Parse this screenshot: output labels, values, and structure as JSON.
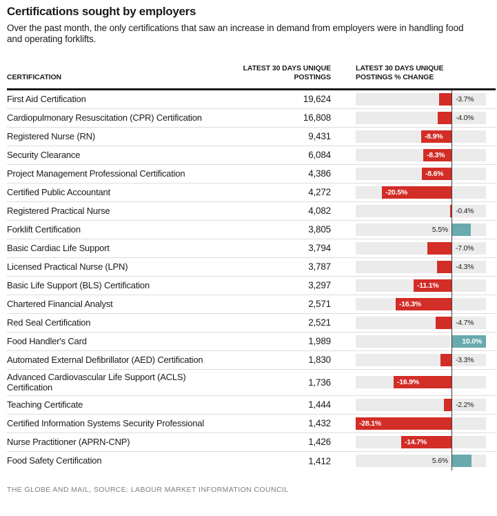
{
  "header": {
    "title": "Certifications sought by employers",
    "subtitle": "Over the past month, the only certifications that saw an increase in demand from employers were in handling food and operating forklifts."
  },
  "columns": {
    "certification": "CERTIFICATION",
    "postings_line1": "LATEST 30 DAYS UNIQUE",
    "postings_line2": "POSTINGS",
    "change_line1": "LATEST 30 DAYS UNIQUE",
    "change_line2": "POSTINGS % CHANGE"
  },
  "colors": {
    "negative": "#d22d26",
    "positive": "#68aaaf",
    "track": "#ebebeb",
    "rule": "#1a1a1a",
    "zeroline": "#3c3c3c"
  },
  "footer": {
    "credit": "THE GLOBE AND MAIL, SOURCE: LABOUR MARKET INFORMATION COUNCIL"
  },
  "chart_data": {
    "type": "bar",
    "orientation": "horizontal",
    "value_axis": "percent change",
    "xlim": [
      -28.1,
      10.0
    ],
    "grid": false,
    "rows": [
      {
        "name": "First Aid Certification",
        "postings": "19,624",
        "change": -3.7,
        "change_label": "-3.7%"
      },
      {
        "name": "Cardiopulmonary Resuscitation (CPR) Certification",
        "postings": "16,808",
        "change": -4.0,
        "change_label": "-4.0%"
      },
      {
        "name": "Registered Nurse (RN)",
        "postings": "9,431",
        "change": -8.9,
        "change_label": "-8.9%"
      },
      {
        "name": "Security Clearance",
        "postings": "6,084",
        "change": -8.3,
        "change_label": "-8.3%"
      },
      {
        "name": "Project Management Professional Certification",
        "postings": "4,386",
        "change": -8.6,
        "change_label": "-8.6%"
      },
      {
        "name": "Certified Public Accountant",
        "postings": "4,272",
        "change": -20.5,
        "change_label": "-20.5%"
      },
      {
        "name": "Registered Practical Nurse",
        "postings": "4,082",
        "change": -0.4,
        "change_label": "-0.4%"
      },
      {
        "name": "Forklift Certification",
        "postings": "3,805",
        "change": 5.5,
        "change_label": "5.5%"
      },
      {
        "name": "Basic Cardiac Life Support",
        "postings": "3,794",
        "change": -7.0,
        "change_label": "-7.0%"
      },
      {
        "name": "Licensed Practical Nurse (LPN)",
        "postings": "3,787",
        "change": -4.3,
        "change_label": "-4.3%"
      },
      {
        "name": "Basic Life Support (BLS) Certification",
        "postings": "3,297",
        "change": -11.1,
        "change_label": "-11.1%"
      },
      {
        "name": "Chartered Financial Analyst",
        "postings": "2,571",
        "change": -16.3,
        "change_label": "-16.3%"
      },
      {
        "name": "Red Seal Certification",
        "postings": "2,521",
        "change": -4.7,
        "change_label": "-4.7%"
      },
      {
        "name": "Food Handler's Card",
        "postings": "1,989",
        "change": 10.0,
        "change_label": "10.0%"
      },
      {
        "name": "Automated External Defibrillator (AED) Certification",
        "postings": "1,830",
        "change": -3.3,
        "change_label": "-3.3%"
      },
      {
        "name": "Advanced Cardiovascular Life Support (ACLS) Certification",
        "postings": "1,736",
        "change": -16.9,
        "change_label": "-16.9%"
      },
      {
        "name": "Teaching Certificate",
        "postings": "1,444",
        "change": -2.2,
        "change_label": "-2.2%"
      },
      {
        "name": "Certified Information Systems Security Professional",
        "postings": "1,432",
        "change": -28.1,
        "change_label": "-28.1%"
      },
      {
        "name": "Nurse Practitioner (APRN-CNP)",
        "postings": "1,426",
        "change": -14.7,
        "change_label": "-14.7%"
      },
      {
        "name": "Food Safety Certification",
        "postings": "1,412",
        "change": 5.6,
        "change_label": "5.6%"
      }
    ]
  }
}
